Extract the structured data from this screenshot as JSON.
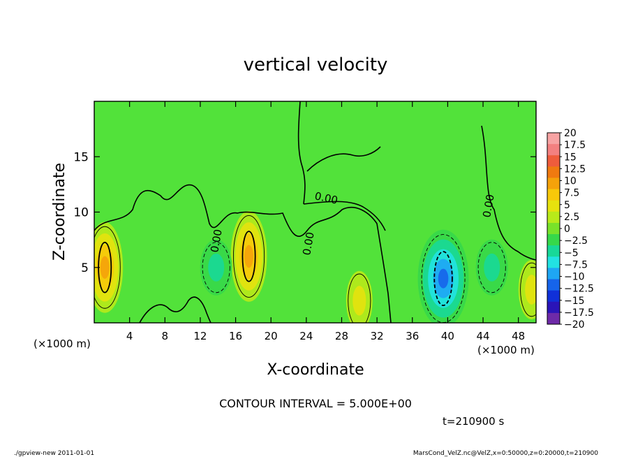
{
  "chart_data": {
    "type": "heatmap",
    "title": "vertical velocity",
    "xlabel": "X-coordinate",
    "ylabel": "Z-coordinate",
    "x_unit_left": "(×1000 m)",
    "x_unit_right": "(×1000 m)",
    "xlim": [
      0,
      50
    ],
    "ylim": [
      0,
      20
    ],
    "x_ticks": [
      4,
      8,
      12,
      16,
      20,
      24,
      28,
      32,
      36,
      40,
      44,
      48
    ],
    "x_tick_labels": [
      "4",
      "8",
      "12",
      "16",
      "20",
      "24",
      "28",
      "32",
      "36",
      "40",
      "44",
      "48"
    ],
    "y_ticks": [
      5,
      10,
      15
    ],
    "y_tick_labels": [
      "5",
      "10",
      "15"
    ],
    "zero_contour_labels": [
      "0.00",
      "0.00",
      "0.00",
      "0.00"
    ],
    "colorbar": {
      "levels": [
        20,
        17.5,
        15,
        12.5,
        10,
        7.5,
        5,
        2.5,
        0,
        -2.5,
        -5,
        -7.5,
        -10,
        -12.5,
        -15,
        -17.5,
        -20
      ],
      "labels": [
        "20",
        "17.5",
        "15",
        "12.5",
        "10",
        "7.5",
        "5",
        "2.5",
        "0",
        "−2.5",
        "−5",
        "−7.5",
        "−10",
        "−12.5",
        "−15",
        "−17.5",
        "−20"
      ],
      "colors": [
        "#f7a3a3",
        "#f38080",
        "#ef5c3c",
        "#f07a10",
        "#f5a20a",
        "#f7c80a",
        "#e6e20e",
        "#b8ea1a",
        "#78e22a",
        "#36d84a",
        "#18d898",
        "#22e2e2",
        "#1ea6f4",
        "#1664ea",
        "#1030d8",
        "#2a14b8",
        "#6e2aa8"
      ]
    },
    "features": [
      {
        "kind": "updraft",
        "x": 1.2,
        "z": 5.0,
        "peak": 10
      },
      {
        "kind": "updraft",
        "x": 17.5,
        "z": 6.0,
        "peak": 10
      },
      {
        "kind": "updraft",
        "x": 30.0,
        "z": 2.0,
        "peak": 5
      },
      {
        "kind": "updraft",
        "x": 49.5,
        "z": 3.0,
        "peak": 5
      },
      {
        "kind": "downdraft",
        "x": 39.5,
        "z": 4.0,
        "peak": -12.5
      },
      {
        "kind": "downdraft",
        "x": 45.0,
        "z": 5.0,
        "peak": -5
      },
      {
        "kind": "downdraft",
        "x": 13.8,
        "z": 5.0,
        "peak": -5
      }
    ],
    "contour_interval": "CONTOUR INTERVAL = 5.000E+00",
    "time_label": "t=210900 s"
  },
  "footer": {
    "left": "./gpview-new  2011-01-01",
    "right": "MarsCond_VelZ.nc@VelZ,x=0:50000,z=0:20000,t=210900"
  }
}
